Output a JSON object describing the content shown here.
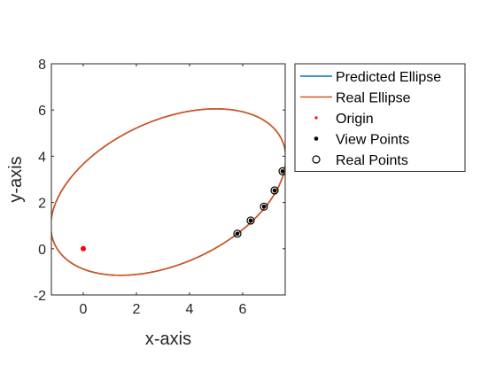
{
  "chart_data": {
    "type": "line",
    "title": "",
    "xlabel": "x-axis",
    "ylabel": "y-axis",
    "xlim": [
      -1.2,
      7.6
    ],
    "ylim": [
      -2,
      8
    ],
    "xticks": [
      0,
      2,
      4,
      6
    ],
    "yticks": [
      -2,
      0,
      2,
      4,
      6,
      8
    ],
    "grid": false,
    "legend_position": "outside-right",
    "legend": [
      {
        "label": "Predicted Ellipse",
        "style": "line",
        "color": "#0072BD"
      },
      {
        "label": "Real Ellipse",
        "style": "line",
        "color": "#D95319"
      },
      {
        "label": "Origin",
        "style": "dot",
        "color": "#FF0000"
      },
      {
        "label": "View Points",
        "style": "dot",
        "color": "#000000"
      },
      {
        "label": "Real Points",
        "style": "circle",
        "color": "#000000"
      }
    ],
    "ellipse": {
      "center": [
        3.2,
        2.45
      ],
      "semi_major": 4.85,
      "semi_minor": 3.0,
      "angle_deg": 31.5
    },
    "series": [
      {
        "name": "Predicted Ellipse",
        "kind": "ellipse",
        "color": "#0072BD"
      },
      {
        "name": "Real Ellipse",
        "kind": "ellipse",
        "color": "#D95319"
      },
      {
        "name": "Origin",
        "kind": "points",
        "color": "#FF0000",
        "x": [
          0
        ],
        "y": [
          0
        ]
      },
      {
        "name": "View Points",
        "kind": "points",
        "color": "#000000",
        "x": [
          5.8,
          6.3,
          6.8,
          7.2,
          7.5
        ],
        "y": [
          0.65,
          1.22,
          1.82,
          2.52,
          3.35
        ]
      },
      {
        "name": "Real Points",
        "kind": "circles",
        "color": "#000000",
        "x": [
          5.8,
          6.3,
          6.8,
          7.2,
          7.5
        ],
        "y": [
          0.65,
          1.22,
          1.82,
          2.52,
          3.35
        ]
      }
    ]
  }
}
